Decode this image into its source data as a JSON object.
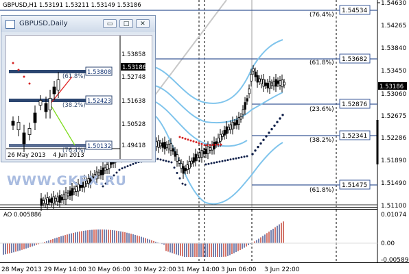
{
  "symbol_info": "GBPUSD,H1  1.53191 1.53211 1.53149 1.53186",
  "price_labels": [
    "1.54630",
    "1.54265",
    "1.53840",
    "1.53450",
    "1.53060",
    "1.52675",
    "1.52286",
    "1.51890",
    "1.51490",
    "1.51100"
  ],
  "current_price": "1.53186",
  "ao_label": "AO 0.005886",
  "ao_axis": [
    "0.01074",
    "0.00",
    "-0.00589"
  ],
  "time_labels": [
    "28 May 2013",
    "29 May 14:00",
    "30 May 06:00",
    "30 May 22:00",
    "31 May 14:00",
    "3 Jun 06:00",
    "3 Jun 22:00"
  ],
  "fib_right_labels": [
    "(76.4%)",
    "(61.8%)",
    "(23.6%)",
    "(38.2%)",
    "(61.8%)"
  ],
  "fib_right_values": [
    "1.54534",
    "1.53682",
    "1.52876",
    "1.52341",
    "1.51475"
  ],
  "inset": {
    "title": "GBPUSD,Daily",
    "price_labels": [
      "1.53858",
      "1.52748",
      "1.51638",
      "1.50528",
      "1.49418"
    ],
    "current_price": "1.53186",
    "fib_labels": [
      "(61.8%)",
      "(38.2%)",
      "(76.4%)"
    ],
    "fib_values": [
      "1.53808",
      "1.52423",
      "1.50132"
    ],
    "time_labels": [
      "26 May 2013",
      "4 Jun 2013"
    ],
    "btn_min": "▭",
    "btn_max": "□",
    "btn_close": "✕"
  },
  "watermark": "WWW.GKFX.RU",
  "colors": {
    "bollinger": "#7fc4ec",
    "fib_line": "#3b5998",
    "ao_up": "#3b4b8c",
    "ao_down": "#c0392b",
    "sar_up": "#10204a",
    "sar_down": "#d42222",
    "green_fib": "#7fdc1e",
    "red_fib": "#e02020"
  }
}
